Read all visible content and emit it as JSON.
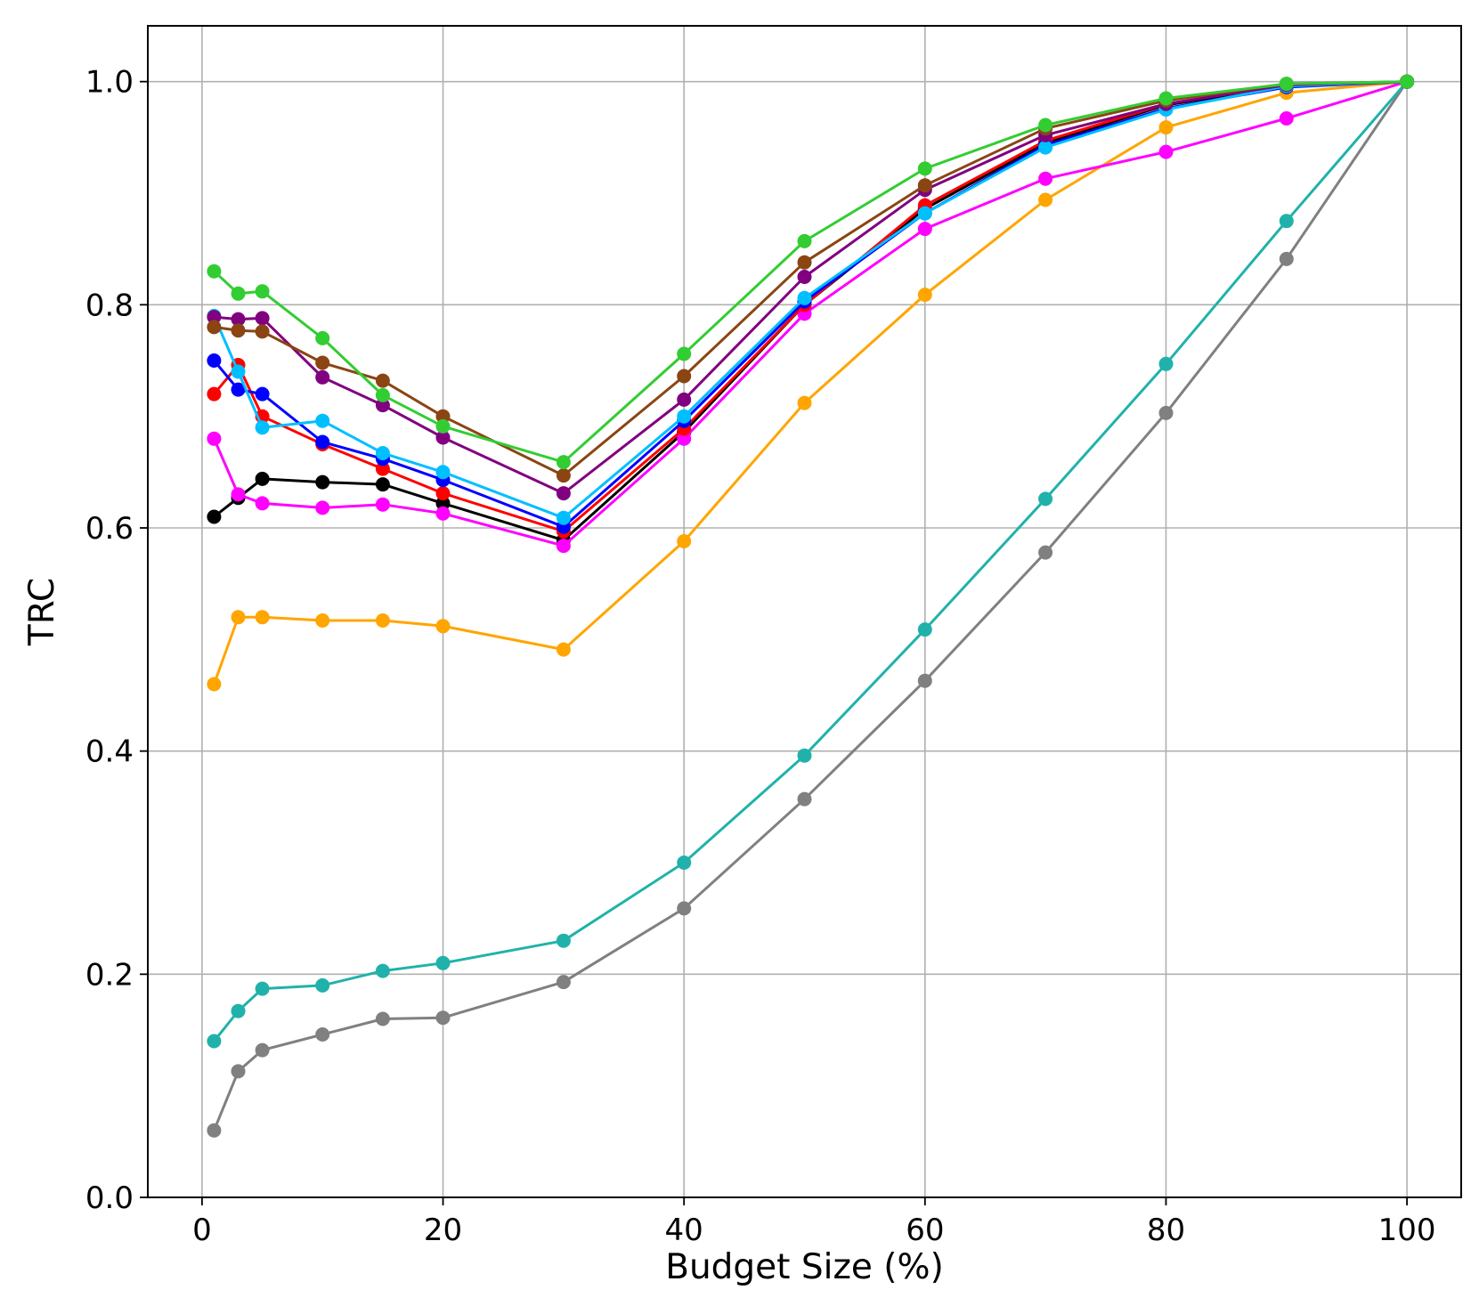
{
  "chart_data": {
    "type": "line",
    "title": "",
    "xlabel": "Budget Size (%)",
    "ylabel": "TRC",
    "xlim": [
      -4.5,
      104.5
    ],
    "ylim": [
      0.0,
      1.05
    ],
    "xticks": [
      0,
      20,
      40,
      60,
      80,
      100
    ],
    "xtick_labels": [
      "0",
      "20",
      "40",
      "60",
      "80",
      "100"
    ],
    "yticks": [
      0.0,
      0.2,
      0.4,
      0.6,
      0.8,
      1.0
    ],
    "ytick_labels": [
      "0.0",
      "0.2",
      "0.4",
      "0.6",
      "0.8",
      "1.0"
    ],
    "grid": true,
    "legend": "none",
    "x": [
      1,
      3,
      5,
      10,
      15,
      20,
      30,
      40,
      50,
      60,
      70,
      80,
      90,
      100
    ],
    "series": [
      {
        "name": "gray",
        "color": "#808080",
        "values": [
          0.06,
          0.113,
          0.132,
          0.146,
          0.16,
          0.161,
          0.193,
          0.259,
          0.357,
          0.463,
          0.578,
          0.703,
          0.841,
          1.0
        ]
      },
      {
        "name": "teal",
        "color": "#20b2aa",
        "values": [
          0.14,
          0.167,
          0.187,
          0.19,
          0.203,
          0.21,
          0.23,
          0.3,
          0.396,
          0.509,
          0.626,
          0.747,
          0.875,
          1.0
        ]
      },
      {
        "name": "orange",
        "color": "#ffa500",
        "values": [
          0.46,
          0.52,
          0.52,
          0.517,
          0.517,
          0.512,
          0.491,
          0.588,
          0.712,
          0.809,
          0.894,
          0.959,
          0.99,
          1.0
        ]
      },
      {
        "name": "black",
        "color": "#000000",
        "values": [
          0.61,
          0.627,
          0.644,
          0.641,
          0.639,
          0.622,
          0.589,
          0.686,
          0.8,
          0.886,
          0.945,
          0.979,
          0.996,
          1.0
        ]
      },
      {
        "name": "magenta",
        "color": "#ff00ff",
        "values": [
          0.68,
          0.63,
          0.622,
          0.618,
          0.621,
          0.613,
          0.584,
          0.68,
          0.792,
          0.868,
          0.913,
          0.937,
          0.967,
          1.0
        ]
      },
      {
        "name": "red",
        "color": "#ff0000",
        "values": [
          0.72,
          0.746,
          0.7,
          0.675,
          0.653,
          0.631,
          0.597,
          0.689,
          0.8,
          0.889,
          0.947,
          0.98,
          0.997,
          1.0
        ]
      },
      {
        "name": "blue",
        "color": "#0000ff",
        "values": [
          0.75,
          0.724,
          0.72,
          0.677,
          0.662,
          0.643,
          0.601,
          0.696,
          0.803,
          0.882,
          0.943,
          0.976,
          0.995,
          1.0
        ]
      },
      {
        "name": "deepskyblue",
        "color": "#00bfff",
        "values": [
          0.79,
          0.74,
          0.69,
          0.696,
          0.667,
          0.65,
          0.609,
          0.7,
          0.806,
          0.882,
          0.941,
          0.975,
          0.996,
          1.0
        ]
      },
      {
        "name": "purple",
        "color": "#800080",
        "values": [
          0.789,
          0.787,
          0.788,
          0.735,
          0.71,
          0.681,
          0.631,
          0.715,
          0.825,
          0.903,
          0.952,
          0.98,
          0.997,
          1.0
        ]
      },
      {
        "name": "brown",
        "color": "#8b4513",
        "values": [
          0.78,
          0.777,
          0.776,
          0.748,
          0.732,
          0.7,
          0.647,
          0.736,
          0.838,
          0.907,
          0.958,
          0.983,
          0.998,
          1.0
        ]
      },
      {
        "name": "limegreen",
        "color": "#32cd32",
        "values": [
          0.83,
          0.81,
          0.812,
          0.77,
          0.719,
          0.691,
          0.659,
          0.756,
          0.857,
          0.922,
          0.961,
          0.985,
          0.998,
          1.0
        ]
      }
    ]
  }
}
